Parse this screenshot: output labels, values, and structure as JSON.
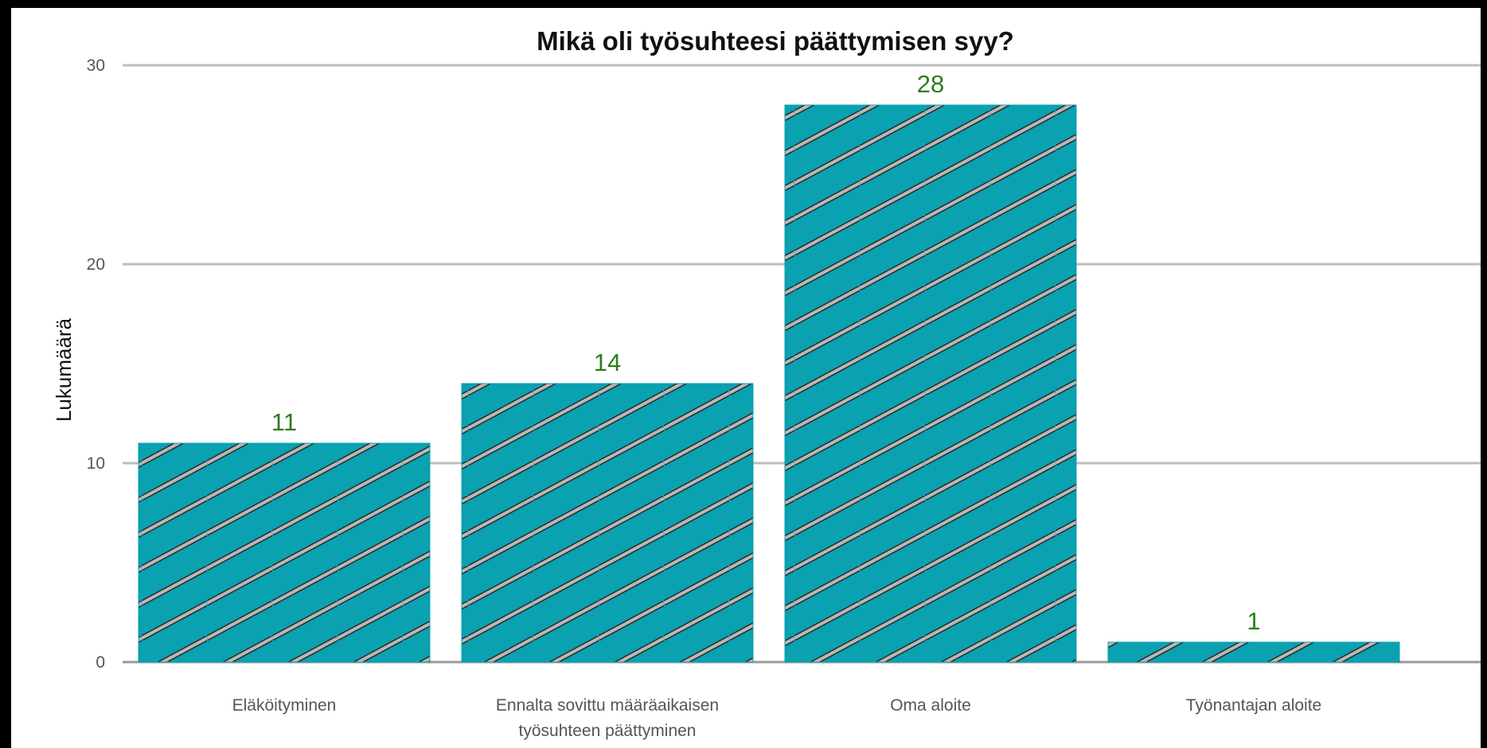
{
  "chart_data": {
    "type": "bar",
    "title": "Mikä oli työsuhteesi päättymisen syy?",
    "xlabel": "",
    "ylabel": "Lukumäärä",
    "categories": [
      [
        "Eläköityminen"
      ],
      [
        "Ennalta sovittu määräaikaisen",
        "työsuhteen päättyminen"
      ],
      [
        "Oma aloite"
      ],
      [
        "Työnantajan aloite"
      ]
    ],
    "values": [
      11,
      14,
      28,
      1
    ],
    "data_labels": [
      "11",
      "14",
      "28",
      "1"
    ],
    "yticks": [
      0,
      10,
      20,
      30
    ],
    "ylim": [
      0,
      30
    ],
    "grid": true,
    "legend": "none",
    "colors": {
      "bar_fill": "#0aa1b1",
      "hatch": "#b8b8b8",
      "hatch_outline": "#2a2a2a",
      "data_label": "#2e7d1f",
      "grid": "#bdbdbd",
      "axis": "#9a9a9a"
    },
    "pattern": "diagonal-stripes"
  }
}
